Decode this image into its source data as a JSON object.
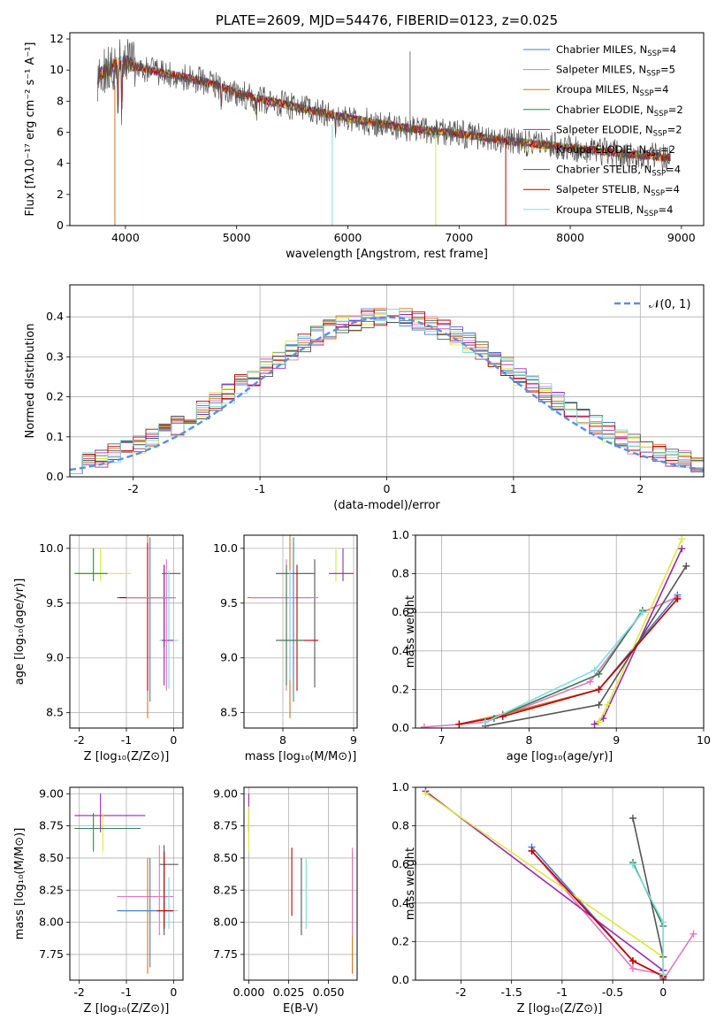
{
  "colors": [
    "#4878d0",
    "#e377c2",
    "#d2761a",
    "#3d7a50",
    "#9a28b0",
    "#dde83a",
    "#555555",
    "#c00000",
    "#7fdde0"
  ],
  "chart_data": [
    {
      "type": "line",
      "title": "PLATE=2609, MJD=54476, FIBERID=0123, z=0.025",
      "xlabel": "wavelength [Angstrom, rest frame]",
      "ylabel": "Flux [fλ10⁻¹⁷ erg cm⁻² s⁻¹ A⁻¹]",
      "xlim": [
        3500,
        9200
      ],
      "ylim": [
        0,
        12.4
      ],
      "xticks": [
        4000,
        5000,
        6000,
        7000,
        8000,
        9000
      ],
      "yticks": [
        0,
        2,
        4,
        6,
        8,
        10,
        12
      ],
      "legend": "top-right",
      "series": [
        {
          "name": "Chabrier MILES, N",
          "sub": "SSP",
          "eq": "=4"
        },
        {
          "name": "Salpeter MILES, N",
          "sub": "SSP",
          "eq": "=5"
        },
        {
          "name": "Kroupa MILES, N",
          "sub": "SSP",
          "eq": "=4"
        },
        {
          "name": "Chabrier ELODIE, N",
          "sub": "SSP",
          "eq": "=2"
        },
        {
          "name": "Salpeter ELODIE, N",
          "sub": "SSP",
          "eq": "=2"
        },
        {
          "name": "Kroupa ELODIE, N",
          "sub": "SSP",
          "eq": "=2"
        },
        {
          "name": "Chabrier STELIB, N",
          "sub": "SSP",
          "eq": "=4"
        },
        {
          "name": "Salpeter STELIB, N",
          "sub": "SSP",
          "eq": "=4"
        },
        {
          "name": "Kroupa STELIB, N",
          "sub": "SSP",
          "eq": "=4"
        }
      ],
      "continuum": [
        [
          3750,
          9.6
        ],
        [
          3900,
          10.3
        ],
        [
          4000,
          10.5
        ],
        [
          4200,
          10.0
        ],
        [
          4500,
          9.6
        ],
        [
          4800,
          9.1
        ],
        [
          5000,
          8.5
        ],
        [
          5300,
          8.0
        ],
        [
          5600,
          7.5
        ],
        [
          6000,
          6.9
        ],
        [
          6500,
          6.3
        ],
        [
          7000,
          5.9
        ],
        [
          7500,
          5.4
        ],
        [
          8000,
          5.0
        ],
        [
          8500,
          4.6
        ],
        [
          9000,
          4.3
        ]
      ]
    },
    {
      "type": "line",
      "xlabel": "(data-model)/error",
      "ylabel": "Normed distribution",
      "xlim": [
        -2.5,
        2.5
      ],
      "ylim": [
        0,
        0.48
      ],
      "xticks": [
        -2,
        -1,
        0,
        1,
        2
      ],
      "yticks": [
        0.0,
        0.1,
        0.2,
        0.3,
        0.4
      ],
      "legend": "top-right",
      "reference": {
        "name": "𝒩(0, 1)",
        "mean": 0,
        "sigma": 1
      }
    },
    {
      "type": "scatter",
      "xlabel": "Z [log₁₀(Z/Z⊙)]",
      "ylabel": "age  [log₁₀(age/yr)]",
      "xlim": [
        -2.2,
        0.2
      ],
      "ylim": [
        8.36,
        10.12
      ],
      "xticks": [
        -2,
        -1,
        0
      ],
      "yticks": [
        8.5,
        9.0,
        9.5,
        10.0
      ]
    },
    {
      "type": "scatter",
      "xlabel": "mass [log₁₀(M/M⊙)]",
      "xlim": [
        7.45,
        9.05
      ],
      "ylim": [
        8.36,
        10.12
      ],
      "xticks": [
        8,
        9
      ],
      "yticks": [
        8.5,
        9.0,
        9.5,
        10.0
      ]
    },
    {
      "type": "line",
      "xlabel": "age  [log₁₀(age/yr)]",
      "ylabel": "mass weight",
      "xlim": [
        6.7,
        10.0
      ],
      "ylim": [
        0,
        1.0
      ],
      "xticks": [
        7,
        8,
        9,
        10
      ],
      "yticks": [
        0.0,
        0.2,
        0.4,
        0.6,
        0.8,
        1.0
      ],
      "series": [
        {
          "x": [
            7.2,
            7.7,
            8.8,
            9.7
          ],
          "y": [
            0.02,
            0.07,
            0.2,
            0.69
          ]
        },
        {
          "x": [
            6.8,
            7.5,
            8.7,
            9.3,
            9.7
          ],
          "y": [
            0.005,
            0.03,
            0.24,
            0.6,
            0.68
          ]
        },
        {
          "x": [
            7.2,
            7.7,
            8.8,
            9.7
          ],
          "y": [
            0.02,
            0.07,
            0.2,
            0.67
          ]
        },
        {
          "x": [
            7.6,
            8.8,
            9.3
          ],
          "y": [
            0.05,
            0.28,
            0.61
          ]
        },
        {
          "x": [
            8.75,
            8.85,
            9.75
          ],
          "y": [
            0.02,
            0.05,
            0.93
          ]
        },
        {
          "x": [
            8.8,
            8.9,
            9.75
          ],
          "y": [
            0.03,
            0.12,
            0.98
          ]
        },
        {
          "x": [
            7.5,
            8.8,
            9.8
          ],
          "y": [
            0.01,
            0.12,
            0.84
          ]
        },
        {
          "x": [
            7.2,
            7.7,
            8.8,
            9.7
          ],
          "y": [
            0.02,
            0.06,
            0.2,
            0.67
          ]
        },
        {
          "x": [
            7.5,
            8.75,
            9.3
          ],
          "y": [
            0.03,
            0.3,
            0.6
          ]
        }
      ]
    },
    {
      "type": "scatter",
      "xlabel": "Z [log₁₀(Z/Z⊙)]",
      "ylabel": "mass [log₁₀(M/M⊙)]",
      "xlim": [
        -2.2,
        0.2
      ],
      "ylim": [
        7.55,
        9.05
      ],
      "xticks": [
        -2,
        -1,
        0
      ],
      "yticks": [
        7.75,
        8.0,
        8.25,
        8.5,
        8.75,
        9.0
      ]
    },
    {
      "type": "scatter",
      "xlabel": "E(B-V)",
      "xlim": [
        -0.003,
        0.068
      ],
      "ylim": [
        7.55,
        9.05
      ],
      "xticks": [
        0.0,
        0.025,
        0.05
      ],
      "xticklabels": [
        "0.000",
        "0.025",
        "0.050"
      ],
      "yticks": [
        7.75,
        8.0,
        8.25,
        8.5,
        8.75,
        9.0
      ]
    },
    {
      "type": "line",
      "xlabel": "Z [log₁₀(Z/Z⊙)]",
      "ylabel": "mass weight",
      "xlim": [
        -2.45,
        0.4
      ],
      "ylim": [
        0,
        1.0
      ],
      "xticks": [
        -2.0,
        -1.5,
        -1.0,
        -0.5,
        0.0
      ],
      "yticks": [
        0.0,
        0.2,
        0.4,
        0.6,
        0.8,
        1.0
      ],
      "series": [
        {
          "x": [
            -1.3,
            -0.3,
            0.0
          ],
          "y": [
            0.69,
            0.1,
            0.02
          ]
        },
        {
          "x": [
            -1.3,
            -0.3,
            0.0,
            0.0,
            0.3
          ],
          "y": [
            0.67,
            0.06,
            0.03,
            0.0,
            0.24
          ]
        },
        {
          "x": [
            -1.3,
            -0.3,
            0.0
          ],
          "y": [
            0.67,
            0.1,
            0.02
          ]
        },
        {
          "x": [
            -0.3,
            0.0,
            0.0
          ],
          "y": [
            0.61,
            0.28,
            0.05
          ]
        },
        {
          "x": [
            -2.35,
            0.0,
            0.0
          ],
          "y": [
            0.98,
            0.05,
            0.0
          ]
        },
        {
          "x": [
            -2.35,
            0.0,
            0.0
          ],
          "y": [
            0.97,
            0.12,
            0.03
          ]
        },
        {
          "x": [
            -0.3,
            0.0,
            0.0
          ],
          "y": [
            0.84,
            0.12,
            0.01
          ]
        },
        {
          "x": [
            -1.3,
            -0.3,
            0.0
          ],
          "y": [
            0.67,
            0.1,
            0.02
          ]
        },
        {
          "x": [
            -0.3,
            0.0,
            0.0
          ],
          "y": [
            0.6,
            0.3,
            0.03
          ]
        }
      ]
    }
  ]
}
